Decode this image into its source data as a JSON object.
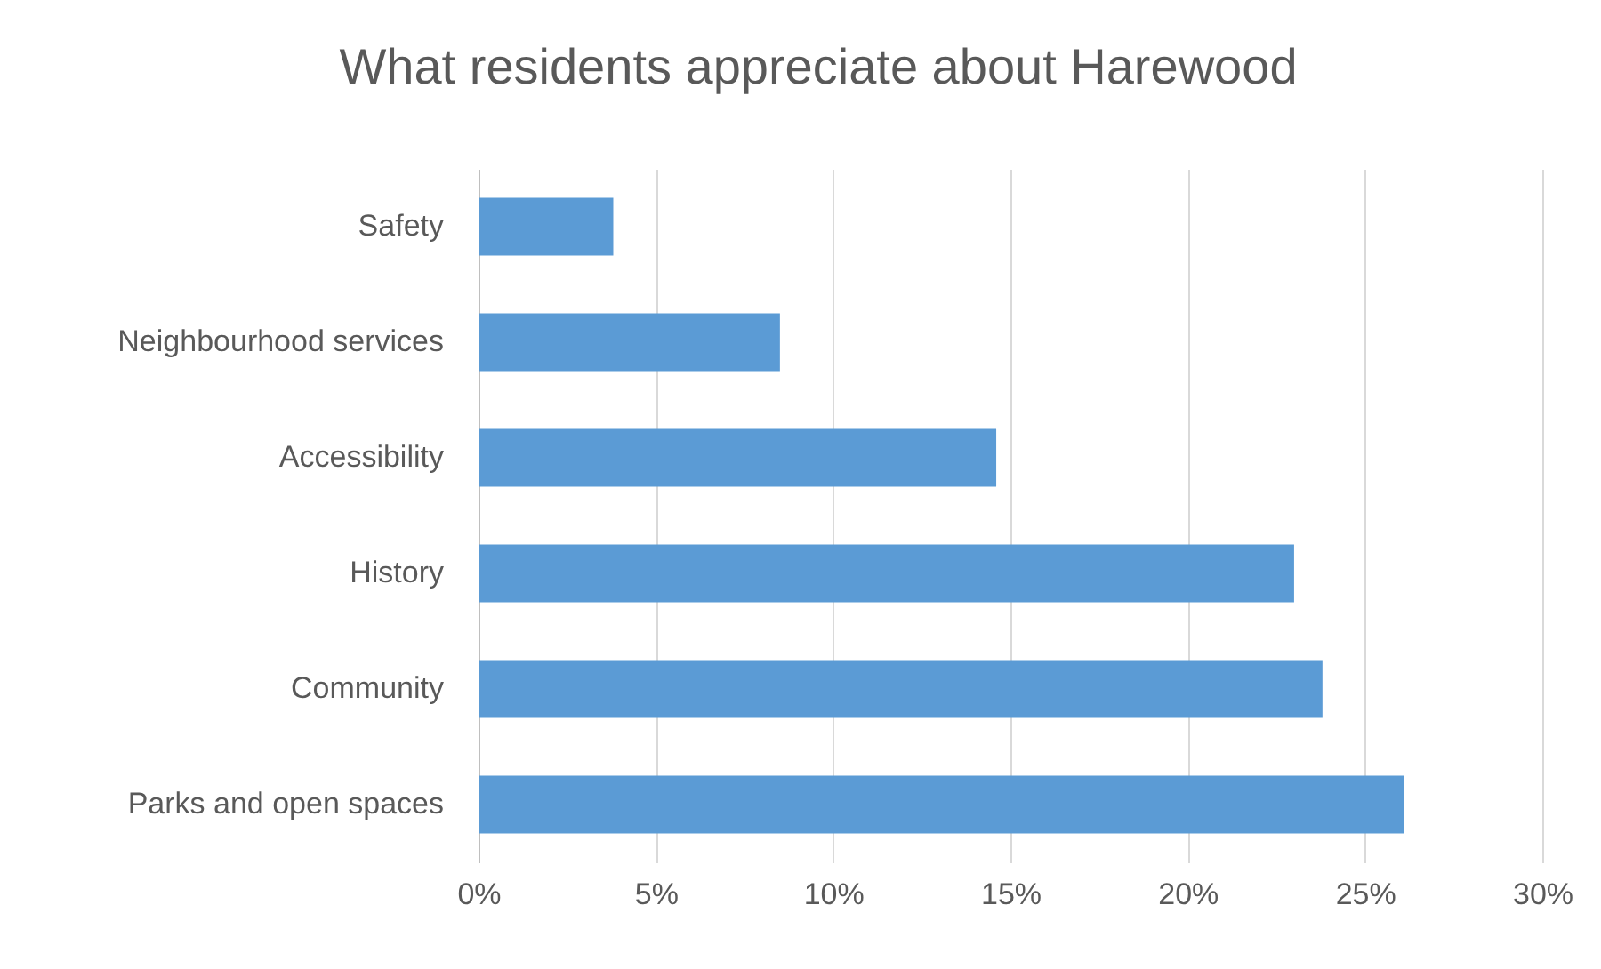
{
  "chart_data": {
    "type": "bar",
    "orientation": "horizontal",
    "title": "What residents appreciate about Harewood",
    "categories": [
      "Safety",
      "Neighbourhood services",
      "Accessibility",
      "History",
      "Community",
      "Parks and open spaces"
    ],
    "values": [
      3.8,
      8.5,
      14.6,
      23.0,
      23.8,
      26.1
    ],
    "color": "#5b9bd5",
    "xlim": [
      0,
      30
    ],
    "xticks": [
      {
        "value": 0,
        "label": "0%"
      },
      {
        "value": 5,
        "label": "5%"
      },
      {
        "value": 10,
        "label": "10%"
      },
      {
        "value": 15,
        "label": "15%"
      },
      {
        "value": 20,
        "label": "20%"
      },
      {
        "value": 25,
        "label": "25%"
      },
      {
        "value": 30,
        "label": "30%"
      }
    ],
    "grid": "x"
  }
}
